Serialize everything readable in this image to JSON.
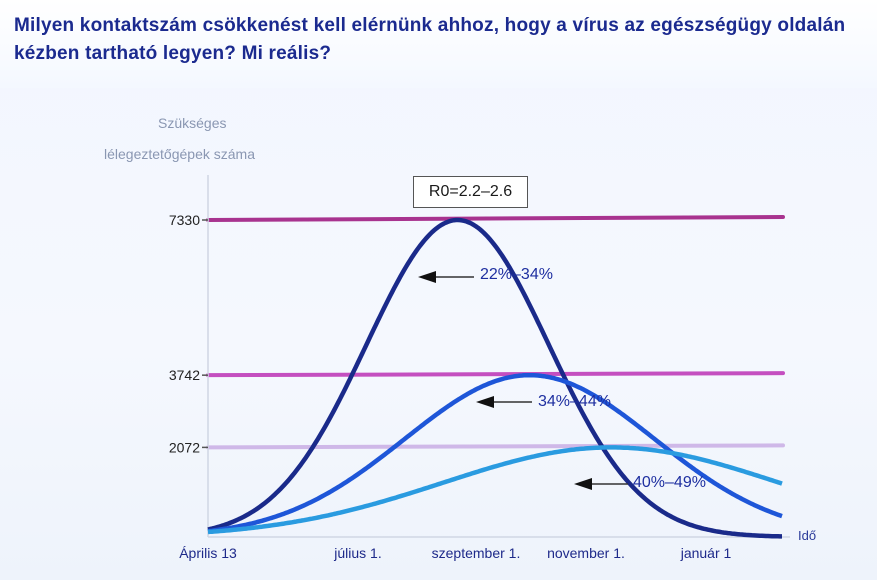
{
  "title": "Milyen kontaktszám csökkenést kell elérnünk ahhoz, hogy a vírus az egészségügy oldalán kézben tartható legyen? Mi reális?",
  "chart_data": {
    "type": "line",
    "ylabel_line1": "Szükséges",
    "ylabel_line2": "lélegeztetőgépek száma",
    "xlabel": "Idő",
    "annotation": "R0=2.2–2.6",
    "ylim": [
      0,
      7800
    ],
    "x_ticks": [
      "Április 13",
      "július 1.",
      "szeptember 1.",
      "november 1.",
      "január 1"
    ],
    "y_reference_lines": [
      {
        "value": 7330,
        "label": "7330",
        "color": "#a8338f"
      },
      {
        "value": 3742,
        "label": "3742",
        "color": "#c44fc0"
      },
      {
        "value": 2072,
        "label": "2072",
        "color": "#cfb8e8"
      }
    ],
    "series": [
      {
        "name": "22%–34%",
        "color": "#1a2a8a",
        "peak_value": 7330,
        "peak_month": 2.6,
        "width_months": 0.95
      },
      {
        "name": "34%–44%",
        "color": "#1e56d8",
        "peak_value": 3742,
        "peak_month": 3.35,
        "width_months": 1.3
      },
      {
        "name": "40%–49%",
        "color": "#2a9be0",
        "peak_value": 2072,
        "peak_month": 4.2,
        "width_months": 1.75
      }
    ]
  }
}
